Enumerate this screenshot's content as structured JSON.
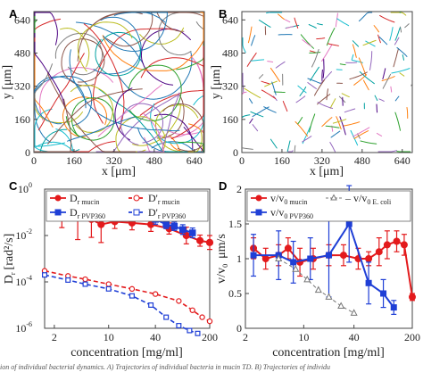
{
  "caption_fragment": "ion of individual bacterial dynamics. A) Trajectories of individual bacteria in mucin TD. B) Trajectories of individu",
  "chart_data": [
    {
      "panel": "A",
      "type": "trajectory",
      "xlabel": "x [μm]",
      "ylabel": "y [μm]",
      "xlim": [
        0,
        680
      ],
      "ylim": [
        0,
        680
      ],
      "xticks": [
        "0",
        "160",
        "320",
        "480",
        "640"
      ],
      "yticks": [
        "0",
        "160",
        "320",
        "480",
        "640"
      ],
      "description": "long curved and circular swimming tracks"
    },
    {
      "panel": "B",
      "type": "trajectory",
      "xlabel": "x [μm]",
      "ylabel": "y [μm]",
      "xlim": [
        0,
        680
      ],
      "ylim": [
        0,
        680
      ],
      "xticks": [
        "0",
        "160",
        "320",
        "480",
        "640"
      ],
      "yticks": [
        "0",
        "160",
        "320",
        "480",
        "640"
      ],
      "description": "short straight track segments"
    },
    {
      "panel": "C",
      "type": "line",
      "xlabel": "concentration [mg/ml]",
      "ylabel_main": "D",
      "ylabel_sub": "r",
      "ylabel_unit": "[rad²/s]",
      "xscale": "log",
      "yscale": "log",
      "xlim": [
        1.5,
        200
      ],
      "ylim": [
        1e-06,
        1
      ],
      "xtick_values": [
        2,
        10,
        40,
        200
      ],
      "xticks": [
        "2",
        "10",
        "40",
        "200"
      ],
      "ytick_exponents": [
        -6,
        -4,
        -2,
        0
      ],
      "legend": [
        {
          "main": "D",
          "sub": "r mucin",
          "style": "solid-circle",
          "color": "#e31a1c"
        },
        {
          "main": "D",
          "sub": "r PVP360",
          "style": "solid-square",
          "color": "#1f3fd6"
        },
        {
          "main": "D'",
          "sub": "r mucin",
          "style": "dashed-circle",
          "color": "#e31a1c"
        },
        {
          "main": "D'",
          "sub": "r PVP360",
          "style": "dashed-square",
          "color": "#1f3fd6"
        }
      ],
      "series": [
        {
          "name": "D r mucin",
          "color": "#e31a1c",
          "marker": "circle",
          "dash": false,
          "x": [
            2.5,
            4,
            6,
            8,
            12,
            20,
            35,
            60,
            100,
            150,
            200
          ],
          "y": [
            0.1,
            0.07,
            0.05,
            0.03,
            0.04,
            0.035,
            0.03,
            0.02,
            0.01,
            0.006,
            0.005
          ],
          "err": [
            1.1,
            1.7,
            1.3,
            1.3,
            0.5,
            0.5,
            0.5,
            0.4,
            0.6,
            0.4,
            0.5
          ]
        },
        {
          "name": "D r PVP360",
          "color": "#1f3fd6",
          "marker": "square",
          "dash": false,
          "x": [
            2.5,
            4,
            6,
            10,
            15,
            25,
            40,
            55,
            70,
            90,
            120
          ],
          "y": [
            0.08,
            0.08,
            0.08,
            0.085,
            0.08,
            0.07,
            0.05,
            0.03,
            0.025,
            0.018,
            0.013
          ],
          "err": [
            0.25,
            0.25,
            0.25,
            0.25,
            0.25,
            0.3,
            0.35,
            0.3,
            0.3,
            0.35,
            0.35
          ]
        },
        {
          "name": "D' r mucin",
          "color": "#e31a1c",
          "marker": "circle",
          "dash": true,
          "x": [
            1.5,
            3,
            5,
            10,
            20,
            40,
            80,
            120,
            160,
            200
          ],
          "y": [
            0.0003,
            0.00018,
            0.00013,
            8e-05,
            5e-05,
            3e-05,
            1.5e-05,
            6e-06,
            3e-06,
            2e-06
          ],
          "err": []
        },
        {
          "name": "D' r PVP360",
          "color": "#1f3fd6",
          "marker": "square",
          "dash": true,
          "x": [
            1.5,
            3,
            5,
            10,
            20,
            35,
            55,
            80,
            110,
            140
          ],
          "y": [
            0.0002,
            0.00012,
            8e-05,
            5e-05,
            2.5e-05,
            1e-05,
            3e-06,
            1.3e-06,
            8e-07,
            6e-07
          ],
          "err": []
        }
      ]
    },
    {
      "panel": "D",
      "type": "line",
      "xlabel": "concentration [mg/ml]",
      "ylabel_main": "v/v",
      "ylabel_sub": "0",
      "ylabel_unit": "μm/s",
      "xscale": "log",
      "yscale": "linear",
      "xlim": [
        2,
        200
      ],
      "ylim": [
        0,
        2
      ],
      "xtick_values": [
        2,
        10,
        40,
        200
      ],
      "xticks": [
        "2",
        "10",
        "40",
        "200"
      ],
      "ytick_values": [
        0,
        0.5,
        1,
        1.5,
        2
      ],
      "yticks": [
        "0",
        "0.5",
        "1",
        "1.5",
        "2"
      ],
      "legend": [
        {
          "main": "v/v",
          "sub": "0 mucin",
          "style": "solid-circle",
          "color": "#e31a1c"
        },
        {
          "main": "v/v",
          "sub": "0 PVP360",
          "style": "solid-square",
          "color": "#1f3fd6"
        },
        {
          "main": "– v/v",
          "sub": "0 E. coli",
          "style": "dashed-triangle",
          "color": "#777777"
        }
      ],
      "series": [
        {
          "name": "v/v0 mucin",
          "color": "#e31a1c",
          "marker": "circle",
          "dash": false,
          "x": [
            2.5,
            3.5,
            5,
            6.5,
            9,
            13,
            20,
            30,
            45,
            60,
            80,
            100,
            130,
            160,
            200
          ],
          "y": [
            1.15,
            1.0,
            1.05,
            1.15,
            0.95,
            1.0,
            1.05,
            1.05,
            1.0,
            1.0,
            1.1,
            1.2,
            1.25,
            1.2,
            0.45
          ],
          "err": [
            0.15,
            0.15,
            0.15,
            0.15,
            0.2,
            0.15,
            0.15,
            0.15,
            0.15,
            0.1,
            0.2,
            0.2,
            0.15,
            0.15,
            0.05
          ]
        },
        {
          "name": "v/v0 PVP360",
          "color": "#1f3fd6",
          "marker": "square",
          "dash": false,
          "x": [
            2.5,
            5,
            7.5,
            12,
            20,
            35,
            60,
            90,
            120
          ],
          "y": [
            1.05,
            1.05,
            0.95,
            1.0,
            1.05,
            1.5,
            0.65,
            0.5,
            0.3
          ],
          "err": [
            0.3,
            0.35,
            0.3,
            0.3,
            0.6,
            0.55,
            0.3,
            0.2,
            0.1
          ]
        },
        {
          "name": "– v/v0 E. coli",
          "color": "#777777",
          "marker": "triangle",
          "dash": true,
          "x": [
            5,
            8,
            11,
            15,
            20,
            28,
            40
          ],
          "y": [
            1.0,
            0.85,
            0.7,
            0.55,
            0.45,
            0.32,
            0.22
          ],
          "err": []
        }
      ]
    }
  ]
}
